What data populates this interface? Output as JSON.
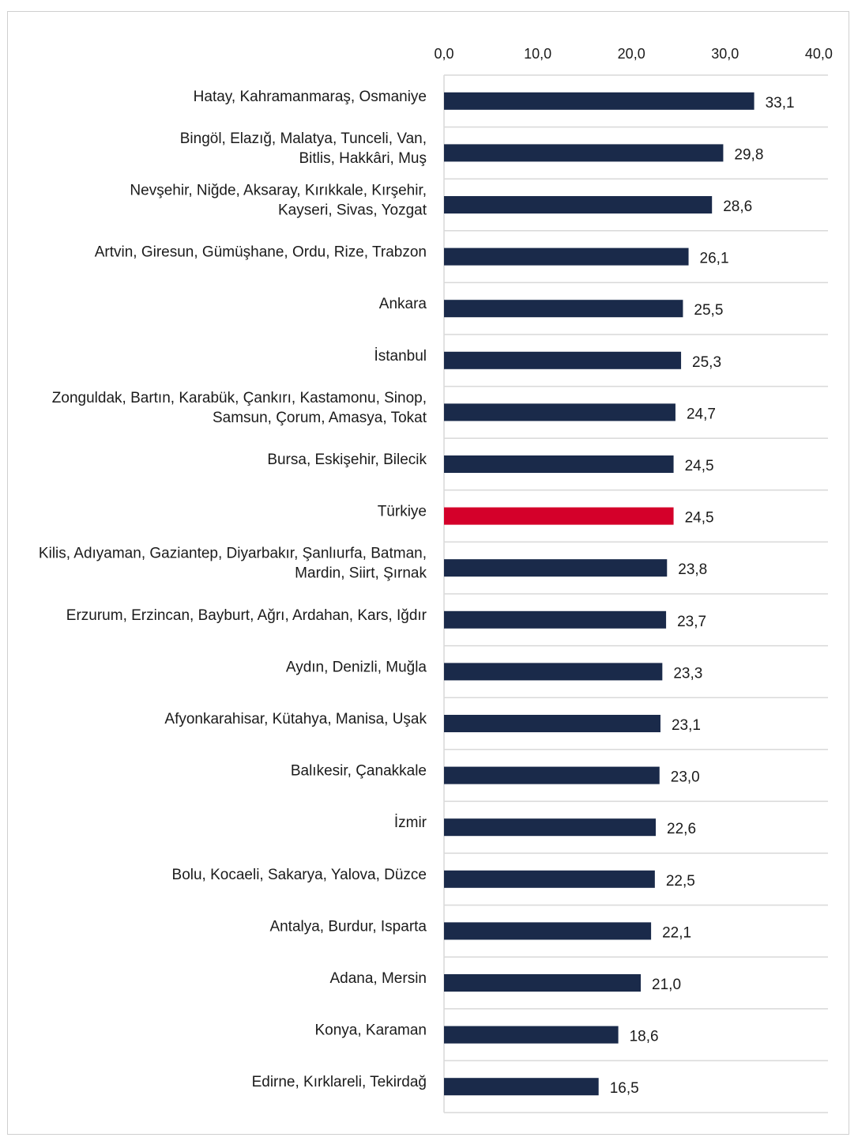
{
  "chart_data": {
    "type": "bar",
    "orientation": "horizontal",
    "title": "",
    "xlabel": "",
    "ylabel": "",
    "xlim": [
      0,
      40
    ],
    "ticks": [
      "0,0",
      "10,0",
      "20,0",
      "30,0",
      "40,0"
    ],
    "tick_values": [
      0,
      10,
      20,
      30,
      40
    ],
    "axis_position": "top",
    "grid": true,
    "legend": "none",
    "colors": {
      "default": "#1a2a4a",
      "highlight": "#d4002a",
      "grid": "#d9d9d9"
    },
    "categories": [
      [
        "Hatay, Kahramanmaraş, Osmaniye"
      ],
      [
        "Bingöl, Elazığ, Malatya, Tunceli, Van,",
        "Bitlis, Hakkâri, Muş"
      ],
      [
        "Nevşehir, Niğde, Aksaray, Kırıkkale, Kırşehir,",
        "Kayseri, Sivas, Yozgat"
      ],
      [
        "Artvin, Giresun, Gümüşhane, Ordu, Rize, Trabzon"
      ],
      [
        "Ankara"
      ],
      [
        "İstanbul"
      ],
      [
        "Zonguldak, Bartın, Karabük, Çankırı, Kastamonu, Sinop,",
        "Samsun, Çorum, Amasya, Tokat"
      ],
      [
        "Bursa, Eskişehir, Bilecik"
      ],
      [
        "Türkiye"
      ],
      [
        "Kilis, Adıyaman, Gaziantep, Diyarbakır, Şanlıurfa, Batman,",
        "Mardin, Siirt, Şırnak"
      ],
      [
        "Erzurum, Erzincan, Bayburt, Ağrı, Ardahan, Kars, Iğdır"
      ],
      [
        "Aydın, Denizli, Muğla"
      ],
      [
        "Afyonkarahisar, Kütahya, Manisa, Uşak"
      ],
      [
        "Balıkesir, Çanakkale"
      ],
      [
        "İzmir"
      ],
      [
        "Bolu, Kocaeli, Sakarya, Yalova, Düzce"
      ],
      [
        "Antalya, Burdur, Isparta"
      ],
      [
        "Adana, Mersin"
      ],
      [
        "Konya, Karaman"
      ],
      [
        "Edirne, Kırklareli, Tekirdağ"
      ]
    ],
    "values": [
      33.1,
      29.8,
      28.6,
      26.1,
      25.5,
      25.3,
      24.7,
      24.5,
      24.5,
      23.8,
      23.7,
      23.3,
      23.1,
      23.0,
      22.6,
      22.5,
      22.1,
      21.0,
      18.6,
      16.5
    ],
    "value_labels": [
      "33,1",
      "29,8",
      "28,6",
      "26,1",
      "25,5",
      "25,3",
      "24,7",
      "24,5",
      "24,5",
      "23,8",
      "23,7",
      "23,3",
      "23,1",
      "23,0",
      "22,6",
      "22,5",
      "22,1",
      "21,0",
      "18,6",
      "16,5"
    ],
    "highlight_index": 8
  }
}
